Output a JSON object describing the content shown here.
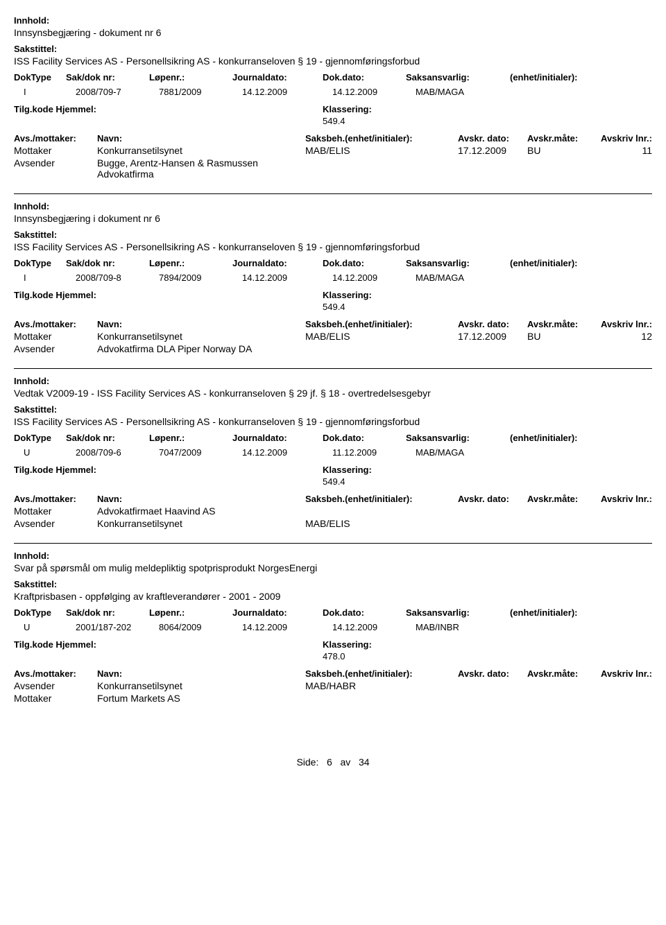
{
  "labels": {
    "innhold": "Innhold:",
    "sakstittel": "Sakstittel:",
    "doktype": "DokType",
    "sakdok": "Sak/dok nr:",
    "lopenr": "Løpenr.:",
    "journaldato": "Journaldato:",
    "dokdato": "Dok.dato:",
    "saksansvarlig": "Saksansvarlig:",
    "enhet": "(enhet/initialer):",
    "tilgkode": "Tilg.kode",
    "hjemmel": "Hjemmel:",
    "klassering": "Klassering:",
    "avsmottaker": "Avs./mottaker:",
    "navn": "Navn:",
    "saksbeh": "Saksbeh.(enhet/initialer):",
    "avskrdato": "Avskr. dato:",
    "avskrmate": "Avskr.måte:",
    "avskrivlnr": "Avskriv lnr.:"
  },
  "records": [
    {
      "innhold": "Innsynsbegjæring - dokument nr 6",
      "sakstittel": "ISS Facility Services AS - Personellsikring AS - konkurranseloven § 19 - gjennomføringsforbud",
      "doktype": "I",
      "sakdok": "2008/709-7",
      "lopenr": "7881/2009",
      "journaldato": "14.12.2009",
      "dokdato": "14.12.2009",
      "saksansvarlig": "MAB/MAGA",
      "klassering": "549.4",
      "parties": [
        {
          "role": "Mottaker",
          "navn": "Konkurransetilsynet",
          "saksbeh": "MAB/ELIS",
          "adato": "17.12.2009",
          "amate": "BU",
          "alnr": "11"
        },
        {
          "role": "Avsender",
          "navn": "Bugge, Arentz-Hansen & Rasmussen Advokatfirma",
          "saksbeh": "",
          "adato": "",
          "amate": "",
          "alnr": ""
        }
      ]
    },
    {
      "innhold": "Innsynsbegjæring i dokument nr 6",
      "sakstittel": "ISS Facility Services AS - Personellsikring AS - konkurranseloven § 19 - gjennomføringsforbud",
      "doktype": "I",
      "sakdok": "2008/709-8",
      "lopenr": "7894/2009",
      "journaldato": "14.12.2009",
      "dokdato": "14.12.2009",
      "saksansvarlig": "MAB/MAGA",
      "klassering": "549.4",
      "parties": [
        {
          "role": "Mottaker",
          "navn": "Konkurransetilsynet",
          "saksbeh": "MAB/ELIS",
          "adato": "17.12.2009",
          "amate": "BU",
          "alnr": "12"
        },
        {
          "role": "Avsender",
          "navn": "Advokatfirma DLA Piper Norway DA",
          "saksbeh": "",
          "adato": "",
          "amate": "",
          "alnr": ""
        }
      ]
    },
    {
      "innhold": "Vedtak V2009-19 - ISS Facility Services AS - konkurranseloven § 29 jf. § 18 - overtredelsesgebyr",
      "sakstittel": "ISS Facility Services AS - Personellsikring AS - konkurranseloven § 19 - gjennomføringsforbud",
      "doktype": "U",
      "sakdok": "2008/709-6",
      "lopenr": "7047/2009",
      "journaldato": "14.12.2009",
      "dokdato": "11.12.2009",
      "saksansvarlig": "MAB/MAGA",
      "klassering": "549.4",
      "parties": [
        {
          "role": "Mottaker",
          "navn": "Advokatfirmaet Haavind AS",
          "saksbeh": "",
          "adato": "",
          "amate": "",
          "alnr": ""
        },
        {
          "role": "Avsender",
          "navn": "Konkurransetilsynet",
          "saksbeh": "MAB/ELIS",
          "adato": "",
          "amate": "",
          "alnr": ""
        }
      ]
    },
    {
      "innhold": "Svar på spørsmål om mulig meldepliktig spotprisprodukt NorgesEnergi",
      "sakstittel": "Kraftprisbasen - oppfølging av kraftleverandører - 2001 - 2009",
      "doktype": "U",
      "sakdok": "2001/187-202",
      "lopenr": "8064/2009",
      "journaldato": "14.12.2009",
      "dokdato": "14.12.2009",
      "saksansvarlig": "MAB/INBR",
      "klassering": "478.0",
      "parties": [
        {
          "role": "Avsender",
          "navn": "Konkurransetilsynet",
          "saksbeh": "MAB/HABR",
          "adato": "",
          "amate": "",
          "alnr": ""
        },
        {
          "role": "Mottaker",
          "navn": "Fortum Markets AS",
          "saksbeh": "",
          "adato": "",
          "amate": "",
          "alnr": ""
        }
      ]
    }
  ],
  "footer": {
    "prefix": "Side:",
    "page": "6",
    "of": "av",
    "total": "34"
  }
}
